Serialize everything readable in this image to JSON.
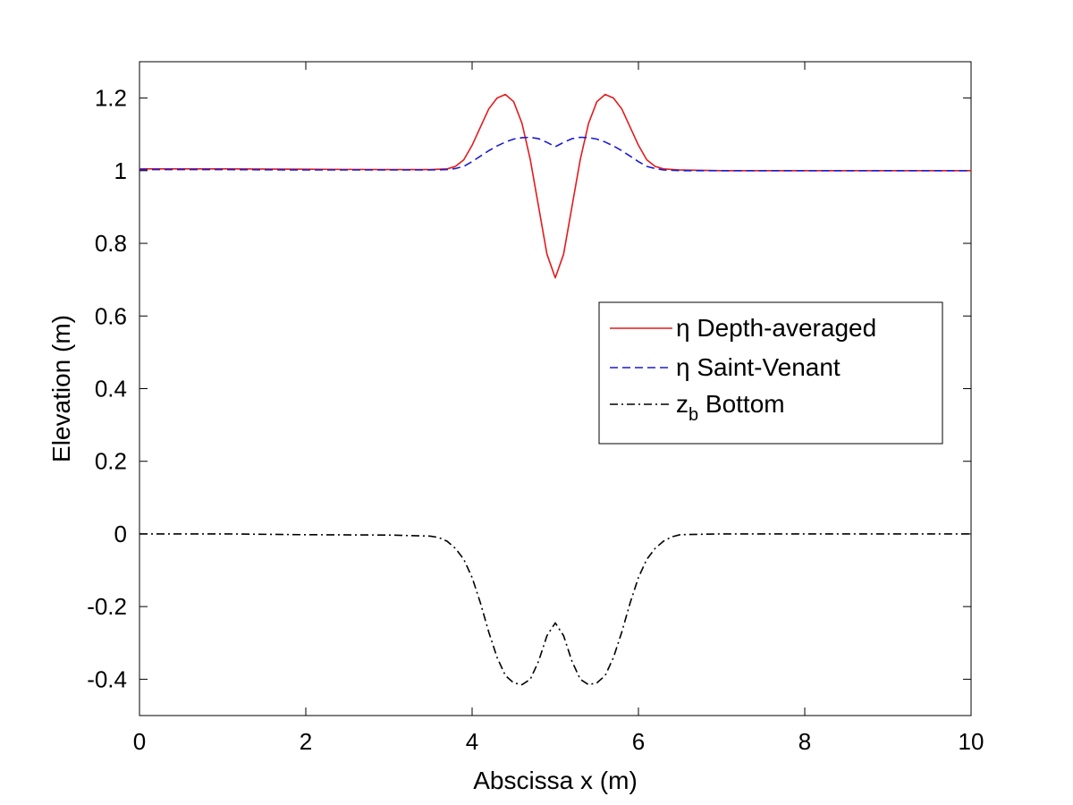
{
  "chart_data": {
    "type": "line",
    "title": "",
    "xlabel": "Abscissa x (m)",
    "ylabel": "Elevation (m)",
    "xlim": [
      0,
      10
    ],
    "ylim": [
      -0.5,
      1.3
    ],
    "xticks": [
      0,
      2,
      4,
      6,
      8,
      10
    ],
    "xtick_labels": [
      "0",
      "2",
      "4",
      "6",
      "8",
      "10"
    ],
    "yticks": [
      -0.4,
      -0.2,
      0,
      0.2,
      0.4,
      0.6,
      0.8,
      1.0,
      1.2
    ],
    "ytick_labels": [
      "-0.4",
      "-0.2",
      "0",
      "0.2",
      "0.4",
      "0.6",
      "0.8",
      "1",
      "1.2"
    ],
    "grid": false,
    "legend_position": "center-right",
    "series": [
      {
        "name": "η Depth-averaged",
        "legend_symbol": "η",
        "legend_text": "Depth-averaged",
        "color": "#e41a1c",
        "style": "solid",
        "x": [
          0,
          1,
          2,
          3,
          3.5,
          3.7,
          3.8,
          3.9,
          4.0,
          4.1,
          4.2,
          4.3,
          4.4,
          4.5,
          4.6,
          4.7,
          4.8,
          4.9,
          5.0,
          5.1,
          5.2,
          5.3,
          5.4,
          5.5,
          5.6,
          5.7,
          5.8,
          5.9,
          6.0,
          6.1,
          6.2,
          6.3,
          6.5,
          7,
          8,
          9,
          10
        ],
        "y": [
          1.005,
          1.005,
          1.004,
          1.003,
          1.003,
          1.005,
          1.012,
          1.03,
          1.07,
          1.12,
          1.17,
          1.2,
          1.21,
          1.19,
          1.13,
          1.03,
          0.9,
          0.77,
          0.705,
          0.77,
          0.9,
          1.03,
          1.13,
          1.19,
          1.21,
          1.2,
          1.17,
          1.12,
          1.07,
          1.03,
          1.012,
          1.005,
          1.002,
          1.0,
          1.0,
          1.0,
          1.0
        ]
      },
      {
        "name": "η Saint-Venant",
        "legend_symbol": "η",
        "legend_text": "Saint-Venant",
        "color": "#1a1ad6",
        "style": "dashed",
        "x": [
          0,
          1,
          2,
          3,
          3.5,
          3.7,
          3.8,
          3.9,
          4.0,
          4.1,
          4.2,
          4.3,
          4.4,
          4.5,
          4.6,
          4.7,
          4.8,
          4.9,
          5.0,
          5.1,
          5.2,
          5.3,
          5.4,
          5.5,
          5.6,
          5.7,
          5.8,
          5.9,
          6.0,
          6.1,
          6.2,
          6.3,
          6.5,
          7,
          8,
          9,
          10
        ],
        "y": [
          1.003,
          1.003,
          1.002,
          1.002,
          1.002,
          1.003,
          1.006,
          1.012,
          1.025,
          1.04,
          1.055,
          1.068,
          1.079,
          1.087,
          1.091,
          1.092,
          1.088,
          1.078,
          1.066,
          1.078,
          1.088,
          1.092,
          1.091,
          1.087,
          1.079,
          1.068,
          1.055,
          1.04,
          1.025,
          1.012,
          1.006,
          1.002,
          1.0,
          1.0,
          1.0,
          1.0,
          1.0
        ]
      },
      {
        "name": "zb Bottom",
        "legend_symbol": "z",
        "legend_subscript": "b",
        "legend_text": "Bottom",
        "color": "#000000",
        "style": "dashdot",
        "x": [
          0,
          1,
          2,
          3,
          3.5,
          3.6,
          3.7,
          3.8,
          3.9,
          4.0,
          4.1,
          4.2,
          4.3,
          4.4,
          4.5,
          4.6,
          4.7,
          4.8,
          4.9,
          5.0,
          5.1,
          5.2,
          5.3,
          5.4,
          5.5,
          5.6,
          5.7,
          5.8,
          5.9,
          6.0,
          6.1,
          6.2,
          6.3,
          6.4,
          6.5,
          7,
          8,
          9,
          10
        ],
        "y": [
          0,
          0,
          -0.002,
          -0.003,
          -0.006,
          -0.01,
          -0.02,
          -0.04,
          -0.07,
          -0.12,
          -0.19,
          -0.27,
          -0.34,
          -0.39,
          -0.41,
          -0.415,
          -0.4,
          -0.35,
          -0.28,
          -0.245,
          -0.28,
          -0.35,
          -0.4,
          -0.415,
          -0.41,
          -0.39,
          -0.34,
          -0.27,
          -0.19,
          -0.12,
          -0.07,
          -0.04,
          -0.02,
          -0.008,
          -0.002,
          0,
          0,
          0,
          0
        ]
      }
    ]
  }
}
